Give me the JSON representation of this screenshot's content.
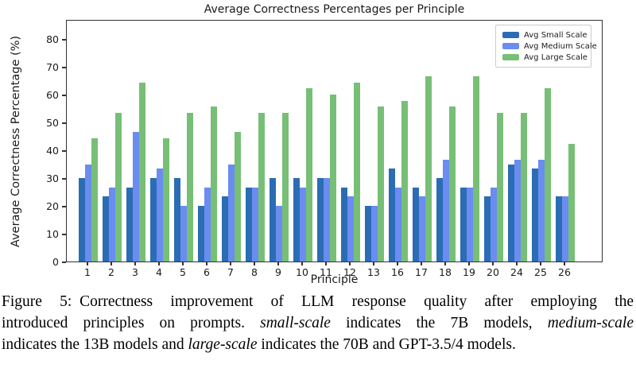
{
  "chart_data": {
    "type": "bar",
    "title": "Average Correctness Percentages per Principle",
    "xlabel": "Principle",
    "ylabel": "Average Correctness Percentage (%)",
    "categories": [
      "1",
      "2",
      "3",
      "4",
      "5",
      "6",
      "7",
      "8",
      "9",
      "10",
      "11",
      "12",
      "13",
      "16",
      "17",
      "18",
      "19",
      "20",
      "24",
      "25",
      "26"
    ],
    "yticks": [
      0,
      10,
      20,
      30,
      40,
      50,
      60,
      70,
      80
    ],
    "ylim": [
      0,
      87
    ],
    "grid": false,
    "legend_position": "upper right",
    "series": [
      {
        "name": "Avg Small Scale",
        "color": "#2a6db4",
        "values": [
          30,
          23.3,
          26.7,
          30,
          30,
          20,
          23.3,
          26.7,
          30,
          30,
          30,
          26.7,
          20,
          33.3,
          26.7,
          30,
          26.7,
          23.3,
          35,
          33.3,
          23.3
        ]
      },
      {
        "name": "Avg Medium Scale",
        "color": "#6b8cf0",
        "values": [
          35,
          26.7,
          46.7,
          33.3,
          20,
          26.7,
          35,
          26.7,
          20,
          26.7,
          30,
          23.3,
          20,
          26.7,
          23.3,
          36.7,
          26.7,
          26.7,
          36.7,
          36.7,
          23.3
        ]
      },
      {
        "name": "Avg Large Scale",
        "color": "#77bf76",
        "values": [
          44.4,
          53.3,
          64.4,
          44.4,
          53.3,
          55.6,
          46.7,
          53.3,
          53.3,
          62.2,
          60,
          64.4,
          55.6,
          57.8,
          66.7,
          55.6,
          66.7,
          53.3,
          53.3,
          62.2,
          42.2
        ]
      }
    ]
  },
  "caption": {
    "lines": [
      [
        {
          "text": "Figure 5: Correctness improvement of LLM response quality after employing the",
          "italic": false
        }
      ],
      [
        {
          "text": "introduced principles on prompts. ",
          "italic": false
        },
        {
          "text": "small-scale",
          "italic": true
        },
        {
          "text": " indicates the 7B models, ",
          "italic": false
        },
        {
          "text": "medium-scale",
          "italic": true
        }
      ],
      [
        {
          "text": "indicates the 13B models and ",
          "italic": false
        },
        {
          "text": "large-scale",
          "italic": true
        },
        {
          "text": " indicates the 70B and GPT-3.5/4 models.",
          "italic": false
        }
      ]
    ]
  },
  "colors": {
    "axis": "#333333",
    "legend_border": "#cccccc",
    "background": "#ffffff"
  }
}
